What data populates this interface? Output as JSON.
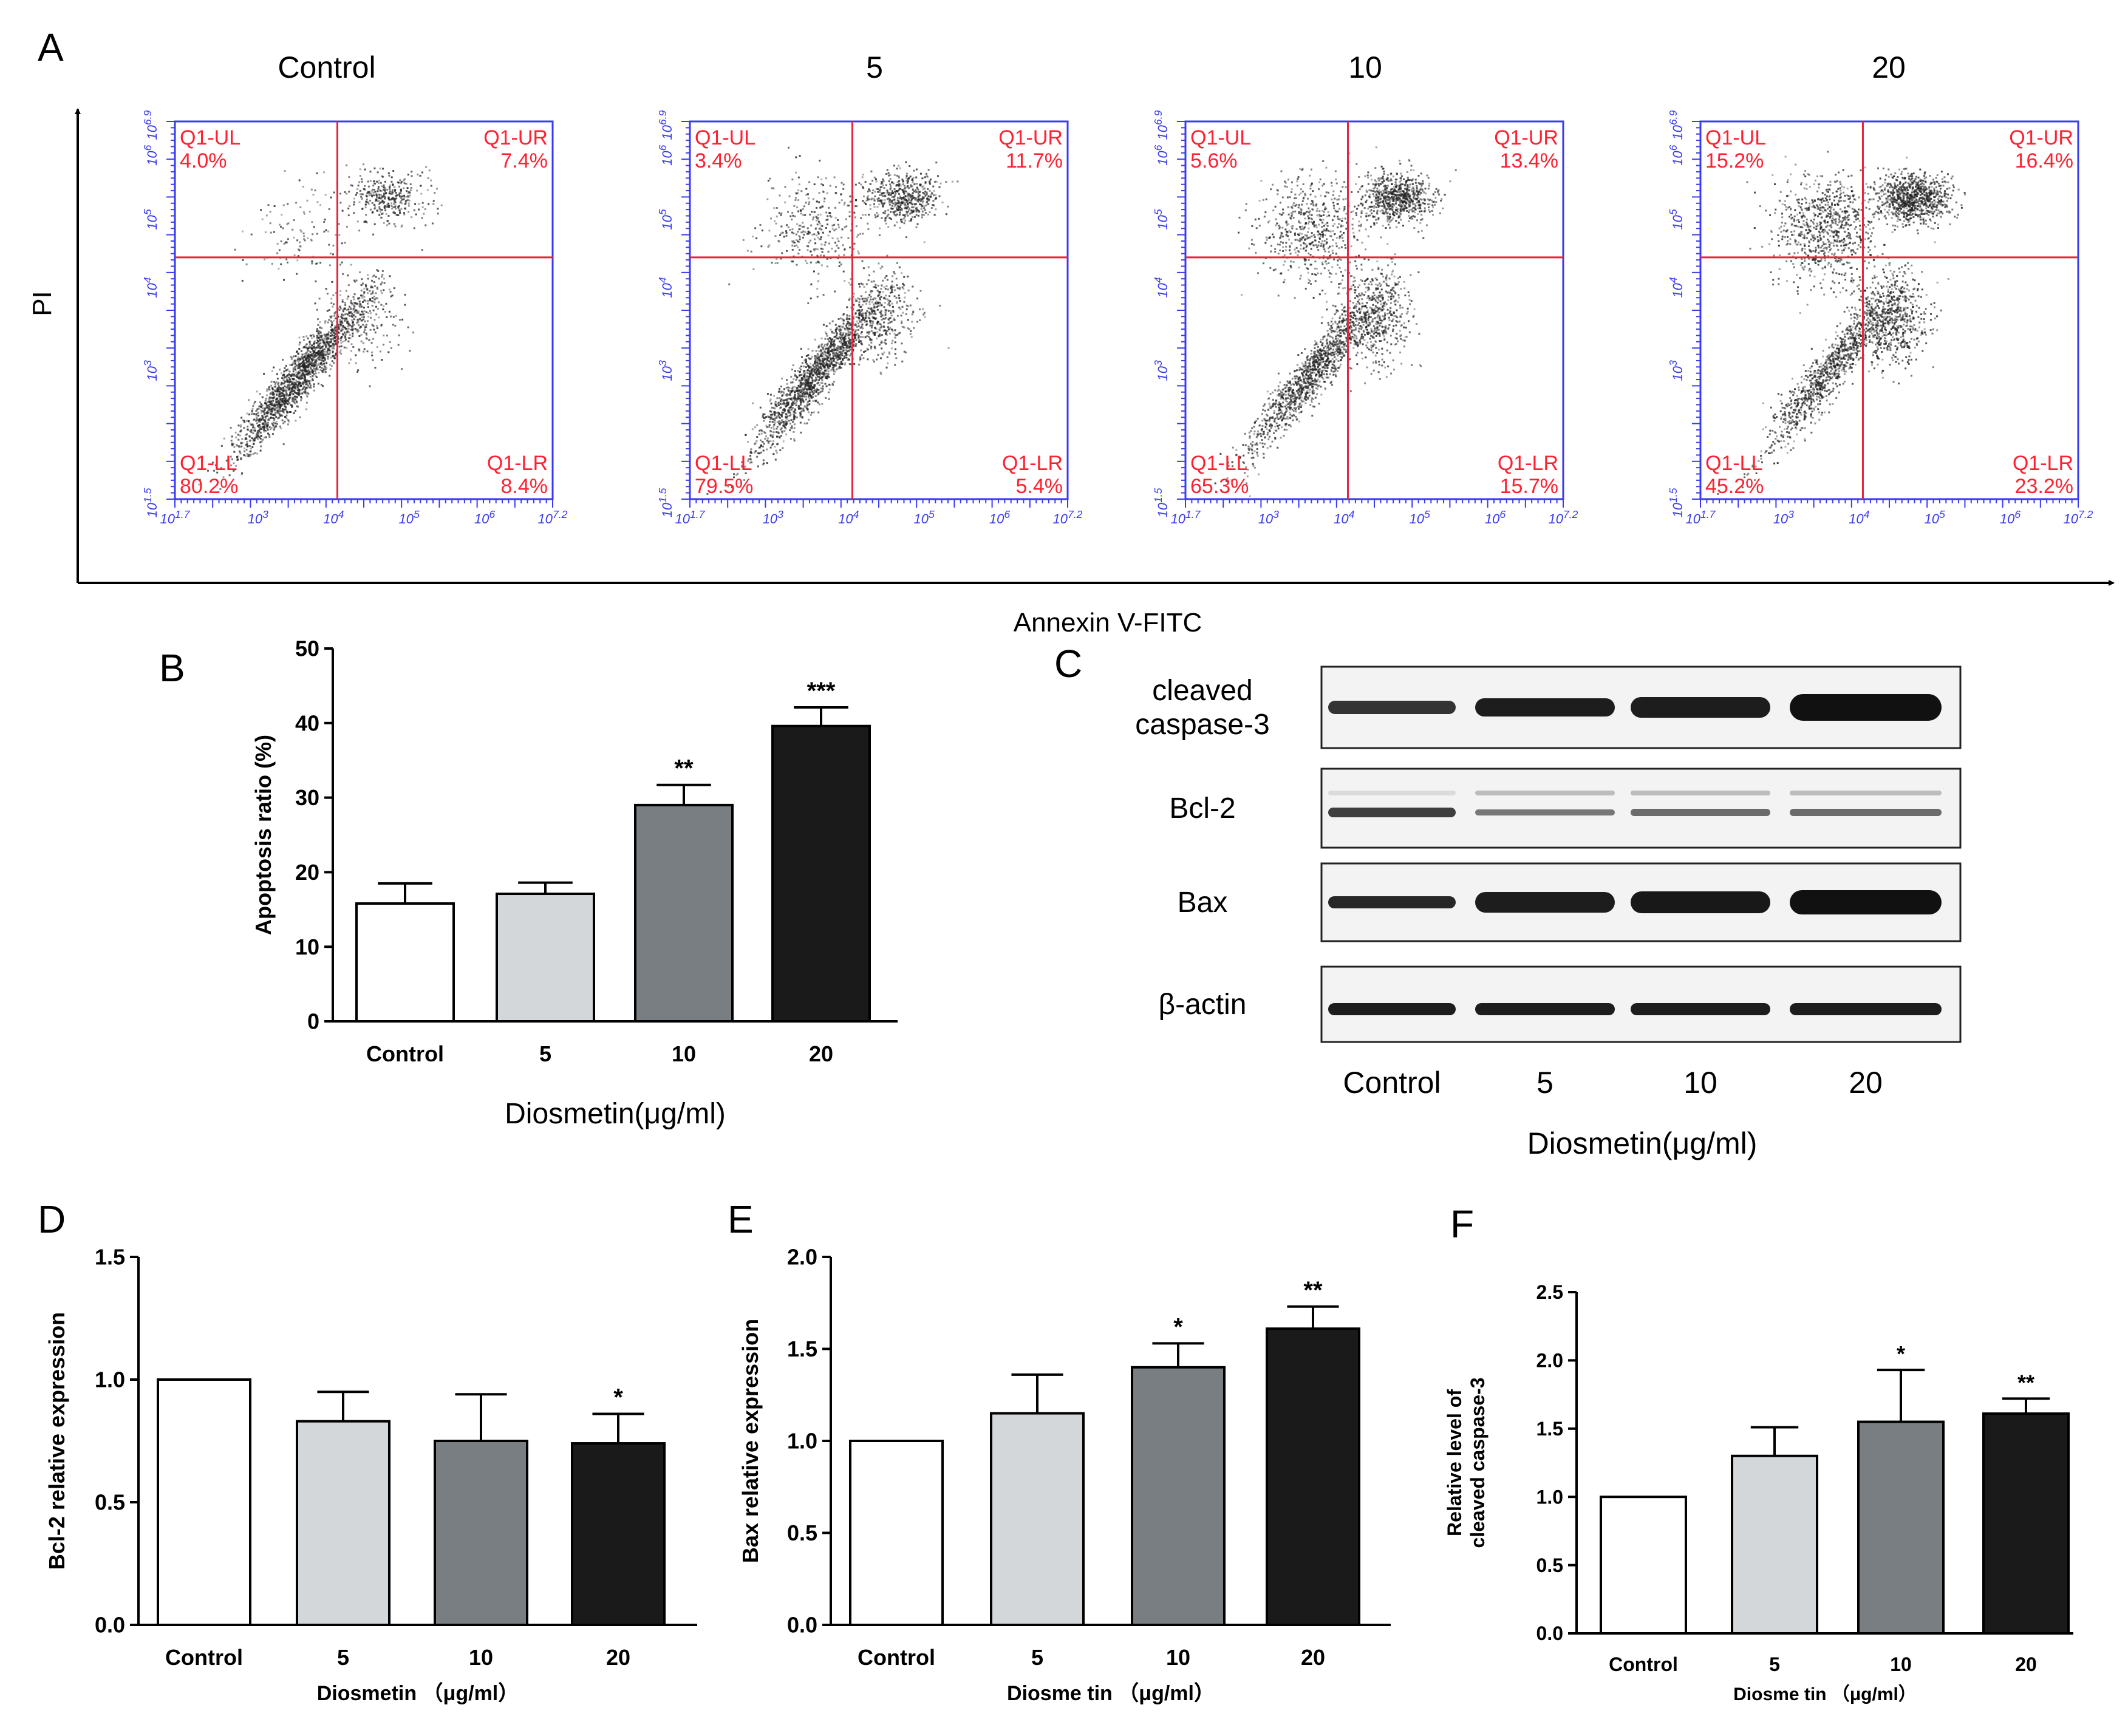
{
  "panel_letters": [
    "A",
    "B",
    "C",
    "D",
    "E",
    "F"
  ],
  "flow": {
    "y_axis_label": "PI",
    "x_axis_label": "Annexin V-FITC",
    "y_ticks": [
      "10^1.5",
      "10^3",
      "10^4",
      "10^5",
      "10^6",
      "10^6.9"
    ],
    "x_ticks": [
      "10^1.7",
      "10^3",
      "10^4",
      "10^5",
      "10^6",
      "10^7.2"
    ],
    "quadrant_names": [
      "Q1-UL",
      "Q1-UR",
      "Q1-LL",
      "Q1-LR"
    ],
    "plots": [
      {
        "title": "Control",
        "UL": "4.0%",
        "UR": "7.4%",
        "LL": "80.2%",
        "LR": "8.4%"
      },
      {
        "title": "5",
        "UL": "3.4%",
        "UR": "11.7%",
        "LL": "79.5%",
        "LR": "5.4%"
      },
      {
        "title": "10",
        "UL": "5.6%",
        "UR": "13.4%",
        "LL": "65.3%",
        "LR": "15.7%"
      },
      {
        "title": "20",
        "UL": "15.2%",
        "UR": "16.4%",
        "LL": "45.2%",
        "LR": "23.2%"
      }
    ]
  },
  "western": {
    "rows": [
      "cleaved\ncaspase-3",
      "Bcl-2",
      "Bax",
      "β-actin"
    ],
    "lanes": [
      "Control",
      "5",
      "10",
      "20"
    ],
    "xlabel": "Diosmetin(μg/ml)"
  },
  "colors": {
    "bars": [
      "#ffffff",
      "#d3d7da",
      "#787e82",
      "#1a1a1a"
    ],
    "flow_frame": "#3a3af0",
    "quadrant": "#e8223c",
    "quadrant_text": "#ff2030"
  },
  "chart_data": [
    {
      "panel": "B",
      "type": "bar",
      "categories": [
        "Control",
        "5",
        "10",
        "20"
      ],
      "values": [
        15.8,
        17.1,
        29.0,
        39.6
      ],
      "errors": [
        2.7,
        1.5,
        2.7,
        2.5
      ],
      "significance": [
        "",
        "",
        "**",
        "***"
      ],
      "xlabel": "Diosmetin(μg/ml)",
      "ylabel": "Apoptosis ratio (%)",
      "ylim": [
        0,
        50
      ],
      "yticks": [
        "0",
        "10",
        "20",
        "30",
        "40",
        "50"
      ]
    },
    {
      "panel": "D",
      "type": "bar",
      "categories": [
        "Control",
        "5",
        "10",
        "20"
      ],
      "values": [
        1.0,
        0.83,
        0.75,
        0.74
      ],
      "errors": [
        0,
        0.12,
        0.19,
        0.12
      ],
      "significance": [
        "",
        "",
        "",
        "*"
      ],
      "xlabel": "Diosmetin （μg/ml）",
      "ylabel": "Bcl-2 relative expression",
      "ylim": [
        0,
        1.5
      ],
      "yticks": [
        "0.0",
        "0.5",
        "1.0",
        "1.5"
      ]
    },
    {
      "panel": "E",
      "type": "bar",
      "categories": [
        "Control",
        "5",
        "10",
        "20"
      ],
      "values": [
        1.0,
        1.15,
        1.4,
        1.61
      ],
      "errors": [
        0,
        0.21,
        0.13,
        0.12
      ],
      "significance": [
        "",
        "",
        "*",
        "**"
      ],
      "xlabel": "Diosme tin （μg/ml）",
      "ylabel": "Bax relative expression",
      "ylim": [
        0,
        2.0
      ],
      "yticks": [
        "0.0",
        "0.5",
        "1.0",
        "1.5",
        "2.0"
      ]
    },
    {
      "panel": "F",
      "type": "bar",
      "categories": [
        "Control",
        "5",
        "10",
        "20"
      ],
      "values": [
        1.0,
        1.3,
        1.55,
        1.61
      ],
      "errors": [
        0,
        0.21,
        0.38,
        0.11
      ],
      "significance": [
        "",
        "",
        "*",
        "**"
      ],
      "xlabel": "Diosme tin （μg/ml）",
      "ylabel": "Relative level of\ncleaved caspase-3",
      "ylim": [
        0,
        2.5
      ],
      "yticks": [
        "0.0",
        "0.5",
        "1.0",
        "1.5",
        "2.0",
        "2.5"
      ]
    }
  ]
}
